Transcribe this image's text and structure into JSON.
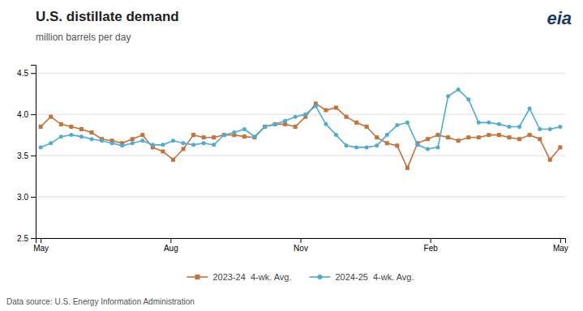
{
  "chart_data": {
    "type": "line",
    "title": "U.S. distillate demand",
    "subtitle": "million barrels per day",
    "annotations": [
      {
        "text": "Data source: U.S. Energy Information Administration"
      },
      {
        "text": "eia",
        "color": "#1a3a6b"
      }
    ],
    "x": [
      0,
      1.019608,
      2.039216,
      3.058824,
      4.078431,
      5.098039,
      6.117647,
      7.137255,
      8.156863,
      9.176471,
      10.196078,
      11.215686,
      12.235294,
      13.254902,
      14.27451,
      15.294118,
      16.313725,
      17.333333,
      18.352941,
      19.372549,
      20.392157,
      21.411765,
      22.431373,
      23.45098,
      24.470588,
      25.490196,
      26.509804,
      27.529412,
      28.54902,
      29.568627,
      30.588235,
      31.607843,
      32.627451,
      33.647059,
      34.666667,
      35.686275,
      36.705882,
      37.72549,
      38.745098,
      39.764706,
      40.784314,
      41.803922,
      42.823529,
      43.843137,
      44.862745,
      45.882353,
      46.901961,
      47.921569,
      48.941176,
      49.960784,
      50.980392,
      52
    ],
    "series": [
      {
        "name": "2023-24  4-wk. Avg.",
        "color": "#C87137",
        "marker": "square",
        "values": [
          3.85,
          3.97,
          3.88,
          3.85,
          3.82,
          3.78,
          3.7,
          3.68,
          3.65,
          3.7,
          3.75,
          3.6,
          3.55,
          3.45,
          3.58,
          3.75,
          3.72,
          3.72,
          3.75,
          3.75,
          3.73,
          3.72,
          3.85,
          3.88,
          3.88,
          3.85,
          3.97,
          4.13,
          4.05,
          4.08,
          3.97,
          3.9,
          3.85,
          3.72,
          3.65,
          3.62,
          3.35,
          3.65,
          3.7,
          3.75,
          3.72,
          3.68,
          3.72,
          3.72,
          3.75,
          3.75,
          3.72,
          3.7,
          3.75,
          3.7,
          3.45,
          3.6
        ]
      },
      {
        "name": "2024-25  4-wk. Avg.",
        "color": "#4BACD6",
        "marker": "circle",
        "values": [
          3.6,
          3.65,
          3.73,
          3.75,
          3.73,
          3.7,
          3.68,
          3.65,
          3.62,
          3.65,
          3.68,
          3.63,
          3.63,
          3.68,
          3.65,
          3.63,
          3.65,
          3.63,
          3.75,
          3.78,
          3.82,
          3.73,
          3.85,
          3.88,
          3.92,
          3.97,
          4.0,
          4.1,
          3.88,
          3.75,
          3.62,
          3.6,
          3.6,
          3.62,
          3.75,
          3.87,
          3.9,
          3.63,
          3.58,
          3.6,
          4.22,
          4.3,
          4.18,
          3.9,
          3.9,
          3.88,
          3.85,
          3.85,
          4.07,
          3.82,
          3.82,
          3.85
        ]
      }
    ],
    "xlim": [
      -0.5,
      52.5
    ],
    "xticks": [
      {
        "value": 0,
        "label": "May"
      },
      {
        "value": 13,
        "label": "Aug"
      },
      {
        "value": 26,
        "label": "Nov"
      },
      {
        "value": 39,
        "label": "Feb"
      },
      {
        "value": 52,
        "label": "May"
      }
    ],
    "ylim": [
      2.5,
      4.6
    ],
    "yticks": [
      2.5,
      {
        "value": 3.0,
        "label": "3.0"
      },
      3.5,
      {
        "value": 4.0,
        "label": "4.0"
      },
      4.5
    ],
    "grid": true,
    "legend": "bottom"
  }
}
